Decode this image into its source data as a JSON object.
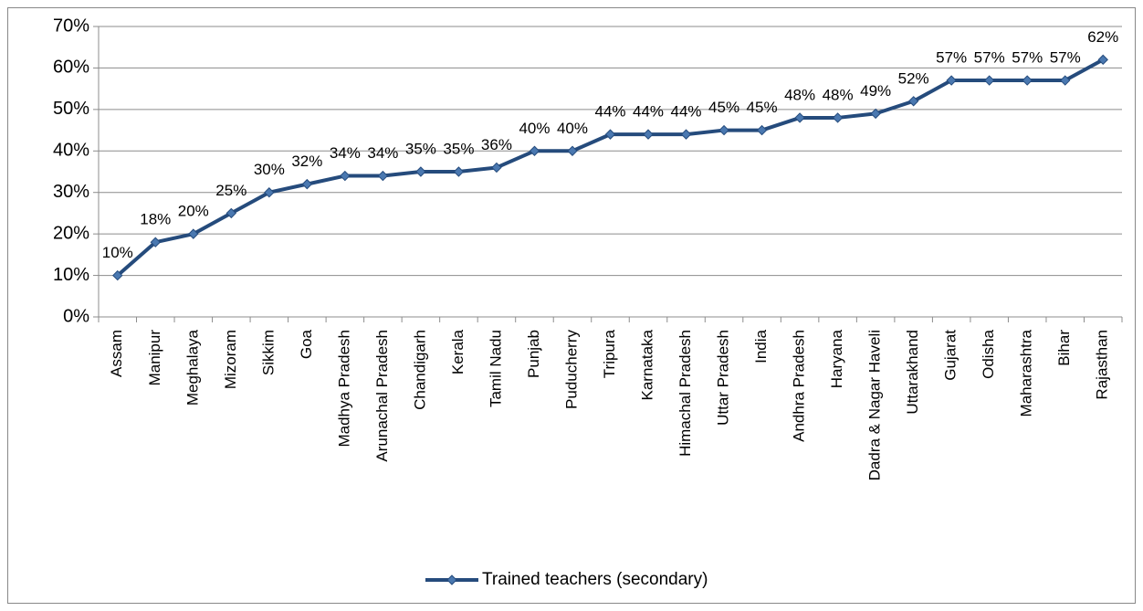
{
  "chart_data": {
    "type": "line",
    "categories": [
      "Assam",
      "Manipur",
      "Meghalaya",
      "Mizoram",
      "Sikkim",
      "Goa",
      "Madhya Pradesh",
      "Arunachal Pradesh",
      "Chandigarh",
      "Kerala",
      "Tamil Nadu",
      "Punjab",
      "Puducherry",
      "Tripura",
      "Karnataka",
      "Himachal Pradesh",
      "Uttar Pradesh",
      "India",
      "Andhra Pradesh",
      "Haryana",
      "Dadra & Nagar Haveli",
      "Uttarakhand",
      "Gujarat",
      "Odisha",
      "Maharashtra",
      "Bihar",
      "Rajasthan"
    ],
    "series": [
      {
        "name": "Trained teachers (secondary)",
        "color": "#254b7c",
        "marker_color": "#4a78b0",
        "values": [
          10,
          18,
          20,
          25,
          30,
          32,
          34,
          34,
          35,
          35,
          36,
          40,
          40,
          44,
          44,
          44,
          45,
          45,
          48,
          48,
          49,
          52,
          57,
          57,
          57,
          57,
          62
        ],
        "value_labels": [
          "10%",
          "18%",
          "20%",
          "25%",
          "30%",
          "32%",
          "34%",
          "34%",
          "35%",
          "35%",
          "36%",
          "40%",
          "40%",
          "44%",
          "44%",
          "44%",
          "45%",
          "45%",
          "48%",
          "48%",
          "49%",
          "52%",
          "57%",
          "57%",
          "57%",
          "57%",
          "62%"
        ]
      }
    ],
    "ylim": [
      0,
      70
    ],
    "yticks": [
      {
        "value": 0,
        "label": "0%"
      },
      {
        "value": 10,
        "label": "10%"
      },
      {
        "value": 20,
        "label": "20%"
      },
      {
        "value": 30,
        "label": "30%"
      },
      {
        "value": 40,
        "label": "40%"
      },
      {
        "value": 50,
        "label": "50%"
      },
      {
        "value": 60,
        "label": "60%"
      },
      {
        "value": 70,
        "label": "70%"
      }
    ],
    "grid": true,
    "legend": "bottom"
  }
}
